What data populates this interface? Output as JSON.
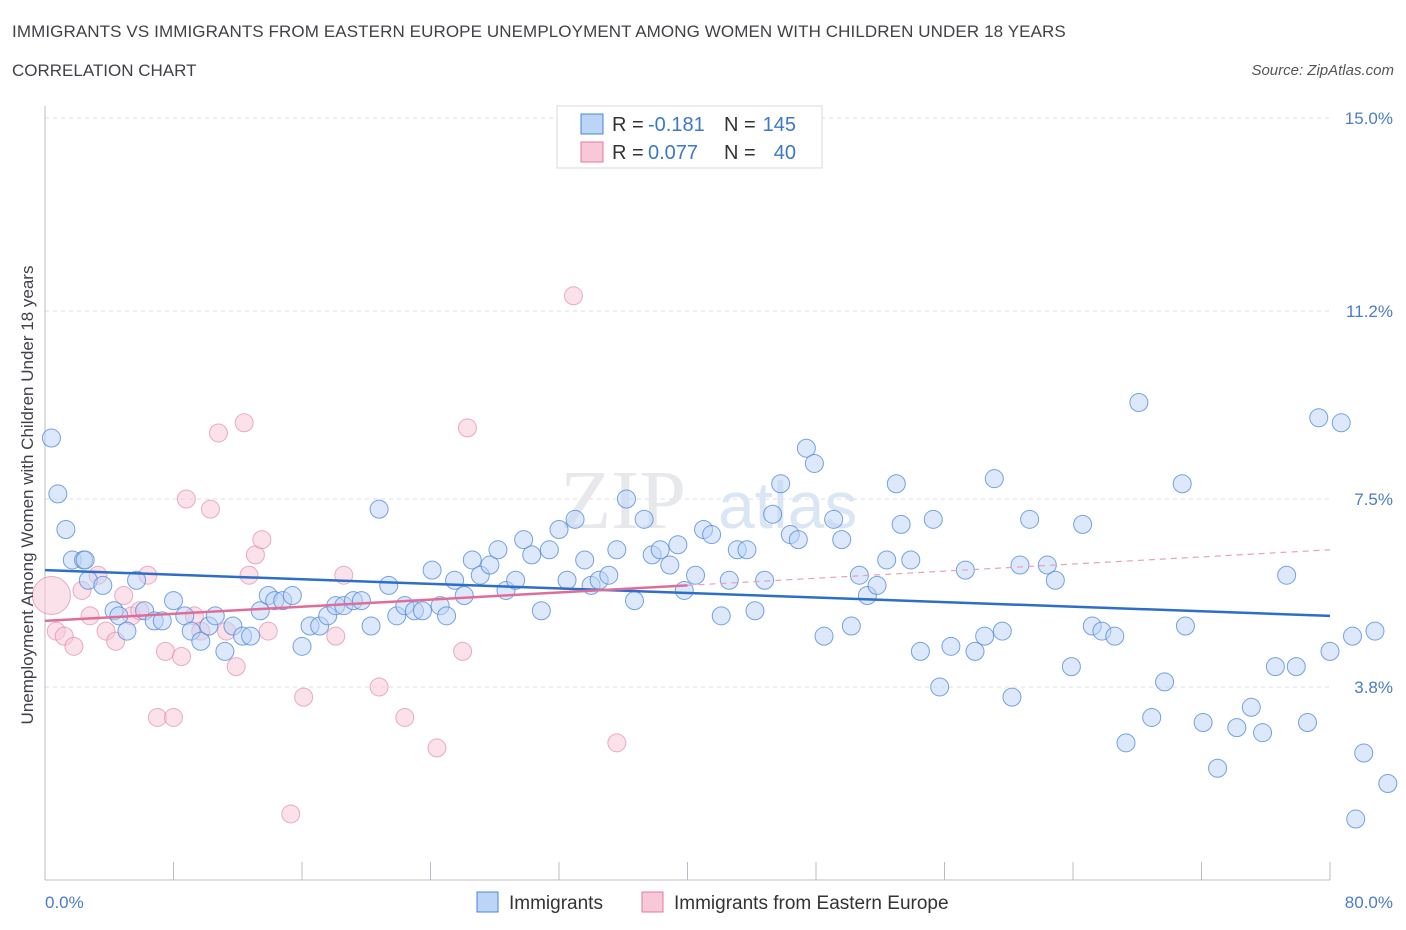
{
  "title": "IMMIGRANTS VS IMMIGRANTS FROM EASTERN EUROPE UNEMPLOYMENT AMONG WOMEN WITH CHILDREN UNDER 18 YEARS",
  "subtitle": "CORRELATION CHART",
  "source": "Source: ZipAtlas.com",
  "watermark": "ZIPatlas",
  "colors": {
    "blue": "#4a86d8",
    "blue_fill": "#bcd4f5",
    "pink": "#e07aa0",
    "pink_fill": "#f8c8d8",
    "grid": "#d9dce3",
    "axis_text": "#4a7cc9"
  },
  "legend": {
    "rows": [
      {
        "r_label": "R =",
        "r_value": "-0.181",
        "n_label": "N =",
        "n_value": "145"
      },
      {
        "r_label": "R =",
        "r_value": "0.077",
        "n_label": "N =",
        "n_value": "40"
      }
    ]
  },
  "chart_data": {
    "type": "scatter",
    "title": "IMMIGRANTS VS IMMIGRANTS FROM EASTERN EUROPE UNEMPLOYMENT AMONG WOMEN WITH CHILDREN UNDER 18 YEARS",
    "xlabel": "",
    "ylabel": "Unemployment Among Women with Children Under 18 years",
    "xlim": [
      0,
      80
    ],
    "ylim": [
      0,
      15
    ],
    "x_tick_labels": [
      "0.0%",
      "80.0%"
    ],
    "y_ticks": [
      3.8,
      7.5,
      11.2,
      15.0
    ],
    "y_tick_labels": [
      "3.8%",
      "7.5%",
      "11.2%",
      "15.0%"
    ],
    "grid": true,
    "legend_position": "bottom",
    "series": [
      {
        "name": "Immigrants",
        "r": -0.181,
        "n": 145,
        "trend": {
          "x": [
            0,
            80
          ],
          "y": [
            6.1,
            5.2
          ]
        },
        "points": [
          [
            0.4,
            8.7
          ],
          [
            0.8,
            7.6
          ],
          [
            1.3,
            6.9
          ],
          [
            1.7,
            6.3
          ],
          [
            2.4,
            6.3
          ],
          [
            2.5,
            6.3
          ],
          [
            2.7,
            5.9
          ],
          [
            3.6,
            5.8
          ],
          [
            4.3,
            5.3
          ],
          [
            4.6,
            5.2
          ],
          [
            5.1,
            4.9
          ],
          [
            5.7,
            5.9
          ],
          [
            6.2,
            5.3
          ],
          [
            6.8,
            5.1
          ],
          [
            7.3,
            5.1
          ],
          [
            8.0,
            5.5
          ],
          [
            8.7,
            5.2
          ],
          [
            9.1,
            4.9
          ],
          [
            9.7,
            4.7
          ],
          [
            10.2,
            5.0
          ],
          [
            10.6,
            5.2
          ],
          [
            11.2,
            4.5
          ],
          [
            11.7,
            5.0
          ],
          [
            12.3,
            4.8
          ],
          [
            12.8,
            4.8
          ],
          [
            13.4,
            5.3
          ],
          [
            13.9,
            5.6
          ],
          [
            14.3,
            5.5
          ],
          [
            14.8,
            5.5
          ],
          [
            15.4,
            5.6
          ],
          [
            16.0,
            4.6
          ],
          [
            16.5,
            5.0
          ],
          [
            17.1,
            5.0
          ],
          [
            17.6,
            5.2
          ],
          [
            18.1,
            5.4
          ],
          [
            18.6,
            5.4
          ],
          [
            19.2,
            5.5
          ],
          [
            19.7,
            5.5
          ],
          [
            20.3,
            5.0
          ],
          [
            20.8,
            7.3
          ],
          [
            21.4,
            5.8
          ],
          [
            21.9,
            5.2
          ],
          [
            22.4,
            5.4
          ],
          [
            23.0,
            5.3
          ],
          [
            23.5,
            5.3
          ],
          [
            24.1,
            6.1
          ],
          [
            24.6,
            5.4
          ],
          [
            25.0,
            5.2
          ],
          [
            25.5,
            5.9
          ],
          [
            26.1,
            5.6
          ],
          [
            26.6,
            6.3
          ],
          [
            27.1,
            6.0
          ],
          [
            27.7,
            6.2
          ],
          [
            28.2,
            6.5
          ],
          [
            28.7,
            5.7
          ],
          [
            29.3,
            5.9
          ],
          [
            29.8,
            6.7
          ],
          [
            30.3,
            6.4
          ],
          [
            30.9,
            5.3
          ],
          [
            31.4,
            6.5
          ],
          [
            32.0,
            6.9
          ],
          [
            32.5,
            5.9
          ],
          [
            33.0,
            7.1
          ],
          [
            33.6,
            6.3
          ],
          [
            34.0,
            5.8
          ],
          [
            34.5,
            5.9
          ],
          [
            35.1,
            6.0
          ],
          [
            35.6,
            6.5
          ],
          [
            36.2,
            7.5
          ],
          [
            36.7,
            5.5
          ],
          [
            37.3,
            7.1
          ],
          [
            37.8,
            6.4
          ],
          [
            38.3,
            6.5
          ],
          [
            38.9,
            6.2
          ],
          [
            39.4,
            6.6
          ],
          [
            39.8,
            5.7
          ],
          [
            40.5,
            6.0
          ],
          [
            41.0,
            6.9
          ],
          [
            41.5,
            6.8
          ],
          [
            42.1,
            5.2
          ],
          [
            42.6,
            5.9
          ],
          [
            43.1,
            6.5
          ],
          [
            43.7,
            6.5
          ],
          [
            44.2,
            5.3
          ],
          [
            44.8,
            5.9
          ],
          [
            45.3,
            7.2
          ],
          [
            45.8,
            7.8
          ],
          [
            46.4,
            6.8
          ],
          [
            46.9,
            6.7
          ],
          [
            47.4,
            8.5
          ],
          [
            47.9,
            8.2
          ],
          [
            48.5,
            4.8
          ],
          [
            49.1,
            7.1
          ],
          [
            49.6,
            6.7
          ],
          [
            50.2,
            5.0
          ],
          [
            50.7,
            6.0
          ],
          [
            51.2,
            5.6
          ],
          [
            51.8,
            5.8
          ],
          [
            52.4,
            6.3
          ],
          [
            53.0,
            7.8
          ],
          [
            53.3,
            7.0
          ],
          [
            53.9,
            6.3
          ],
          [
            54.5,
            4.5
          ],
          [
            55.3,
            7.1
          ],
          [
            55.7,
            3.8
          ],
          [
            56.4,
            4.6
          ],
          [
            57.3,
            6.1
          ],
          [
            57.9,
            4.5
          ],
          [
            58.5,
            4.8
          ],
          [
            59.1,
            7.9
          ],
          [
            59.6,
            4.9
          ],
          [
            60.2,
            3.6
          ],
          [
            60.7,
            6.2
          ],
          [
            61.3,
            7.1
          ],
          [
            62.4,
            6.2
          ],
          [
            62.9,
            5.9
          ],
          [
            63.9,
            4.2
          ],
          [
            64.6,
            7.0
          ],
          [
            65.2,
            5.0
          ],
          [
            65.8,
            4.9
          ],
          [
            66.6,
            4.8
          ],
          [
            67.3,
            2.7
          ],
          [
            68.1,
            9.4
          ],
          [
            68.9,
            3.2
          ],
          [
            69.7,
            3.9
          ],
          [
            70.8,
            7.8
          ],
          [
            71.0,
            5.0
          ],
          [
            72.1,
            3.1
          ],
          [
            73.0,
            2.2
          ],
          [
            74.2,
            3.0
          ],
          [
            75.1,
            3.4
          ],
          [
            75.8,
            2.9
          ],
          [
            76.6,
            4.2
          ],
          [
            77.3,
            6.0
          ],
          [
            77.9,
            4.2
          ],
          [
            78.6,
            3.1
          ],
          [
            79.3,
            9.1
          ],
          [
            80.0,
            4.5
          ],
          [
            80.7,
            9.0
          ],
          [
            81.4,
            4.8
          ],
          [
            81.6,
            1.2
          ],
          [
            82.1,
            2.5
          ],
          [
            82.8,
            4.9
          ],
          [
            83.6,
            1.9
          ]
        ]
      },
      {
        "name": "Immigrants from Eastern Europe",
        "r": 0.077,
        "n": 40,
        "trend": {
          "x": [
            0,
            40
          ],
          "y": [
            5.1,
            5.8
          ]
        },
        "trend_extended": {
          "x": [
            40,
            80
          ],
          "y": [
            5.8,
            6.5
          ]
        },
        "points": [
          [
            0.4,
            5.6
          ],
          [
            0.7,
            4.9
          ],
          [
            1.2,
            4.8
          ],
          [
            1.8,
            4.6
          ],
          [
            2.3,
            5.7
          ],
          [
            2.8,
            5.2
          ],
          [
            3.3,
            6.0
          ],
          [
            3.8,
            4.9
          ],
          [
            4.4,
            4.7
          ],
          [
            4.9,
            5.6
          ],
          [
            5.4,
            5.2
          ],
          [
            5.9,
            5.3
          ],
          [
            6.4,
            6.0
          ],
          [
            7.0,
            3.2
          ],
          [
            7.5,
            4.5
          ],
          [
            8.0,
            3.2
          ],
          [
            8.5,
            4.4
          ],
          [
            8.8,
            7.5
          ],
          [
            9.3,
            5.2
          ],
          [
            9.7,
            4.9
          ],
          [
            10.3,
            7.3
          ],
          [
            10.8,
            8.8
          ],
          [
            11.3,
            4.9
          ],
          [
            11.9,
            4.2
          ],
          [
            12.4,
            9.0
          ],
          [
            12.7,
            6.0
          ],
          [
            13.1,
            6.4
          ],
          [
            13.5,
            6.7
          ],
          [
            13.9,
            4.9
          ],
          [
            15.3,
            1.3
          ],
          [
            16.1,
            3.6
          ],
          [
            18.1,
            4.8
          ],
          [
            18.6,
            6.0
          ],
          [
            20.8,
            3.8
          ],
          [
            22.4,
            3.2
          ],
          [
            24.4,
            2.6
          ],
          [
            26.0,
            4.5
          ],
          [
            26.3,
            8.9
          ],
          [
            32.9,
            11.5
          ],
          [
            35.6,
            2.7
          ]
        ]
      }
    ]
  },
  "bottom_legend": [
    {
      "label": "Immigrants"
    },
    {
      "label": "Immigrants from Eastern Europe"
    }
  ]
}
